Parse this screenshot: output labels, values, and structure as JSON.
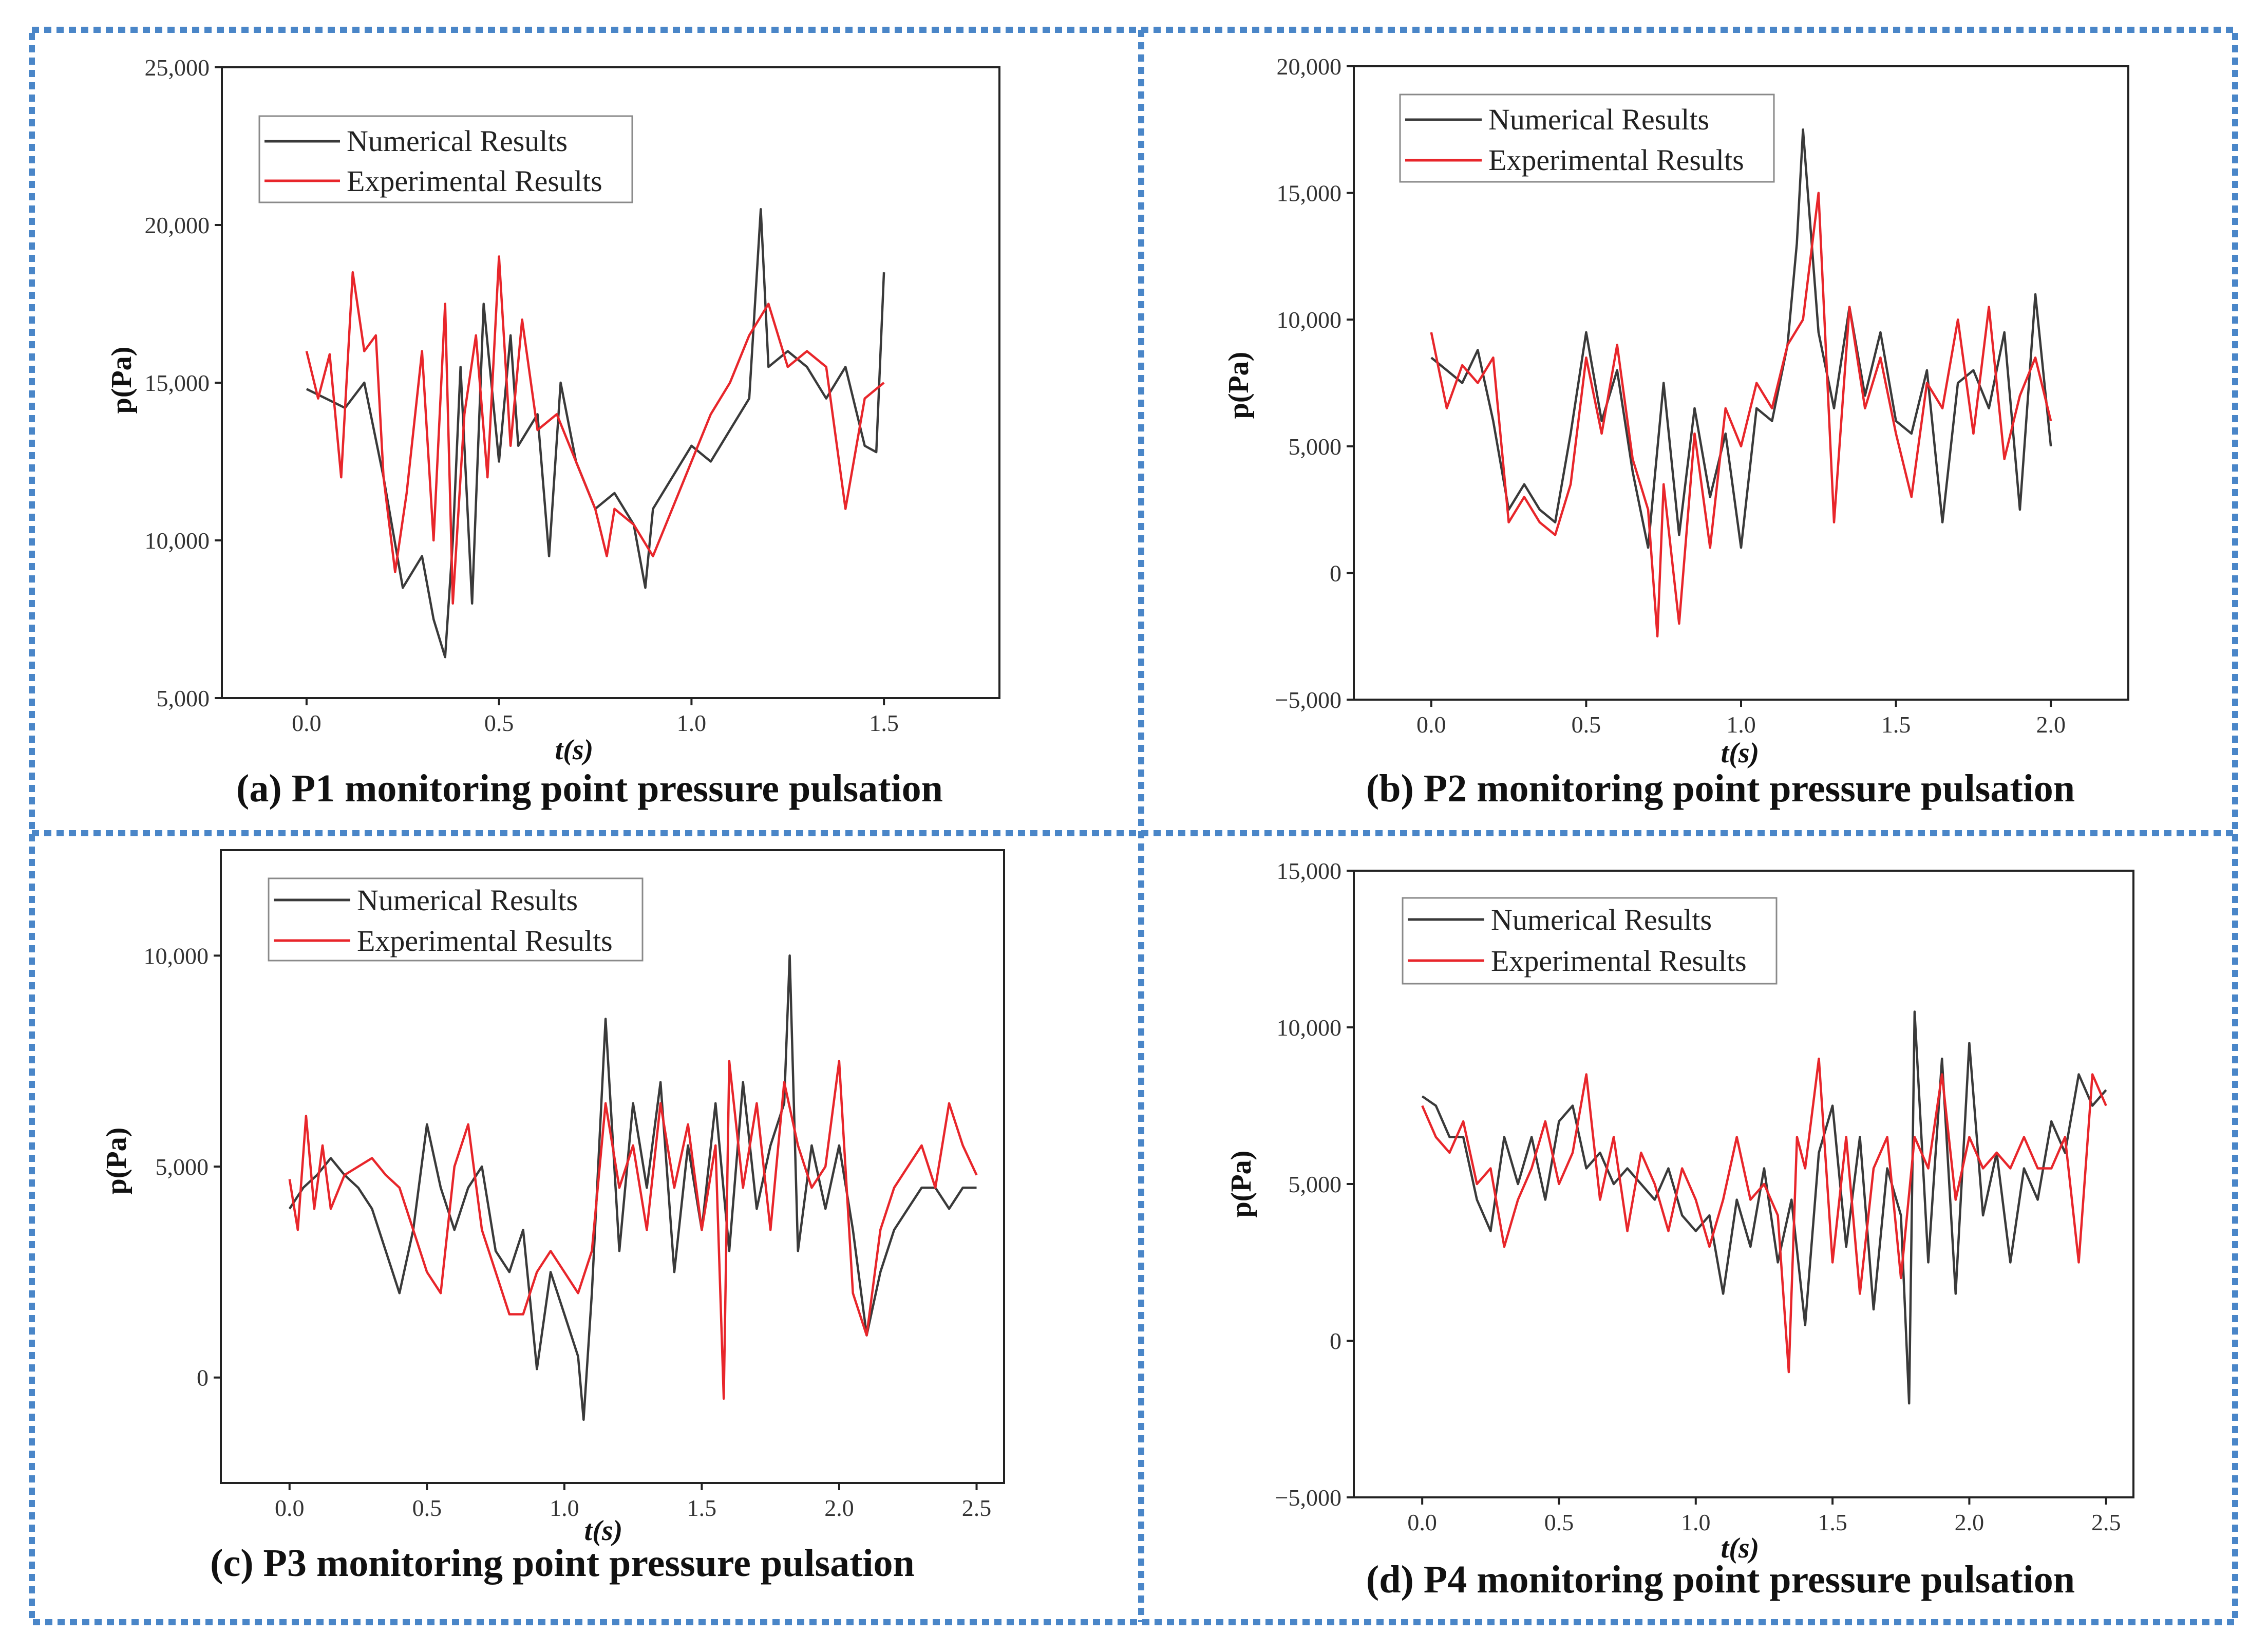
{
  "colors": {
    "numerical": "#3a3a3a",
    "experimental": "#e8262b",
    "frame": "#4a86c8"
  },
  "chart_data": [
    {
      "type": "line",
      "id": "a",
      "caption": "(a) P1 monitoring point pressure pulsation",
      "xlabel": "t(s)",
      "ylabel": "p(Pa)",
      "xlim": [
        -0.22,
        1.8
      ],
      "ylim": [
        5000,
        25000
      ],
      "xticks": [
        0.0,
        0.5,
        1.0,
        1.5
      ],
      "xtick_labels": [
        "0.0",
        "0.5",
        "1.0",
        "1.5"
      ],
      "yticks": [
        5000,
        10000,
        15000,
        20000,
        25000
      ],
      "ytick_labels": [
        "5,000",
        "10,000",
        "15,000",
        "20,000",
        "25,000"
      ],
      "legend": [
        "Numerical Results",
        "Experimental Results"
      ],
      "series": [
        {
          "name": "Numerical Results",
          "color": "#3a3a3a",
          "x": [
            0.0,
            0.05,
            0.1,
            0.15,
            0.2,
            0.25,
            0.3,
            0.33,
            0.36,
            0.38,
            0.4,
            0.43,
            0.46,
            0.5,
            0.53,
            0.55,
            0.6,
            0.63,
            0.66,
            0.7,
            0.75,
            0.8,
            0.85,
            0.88,
            0.9,
            0.95,
            1.0,
            1.05,
            1.1,
            1.15,
            1.18,
            1.2,
            1.25,
            1.3,
            1.35,
            1.4,
            1.45,
            1.48,
            1.5
          ],
          "y": [
            14800,
            14500,
            14200,
            15000,
            12000,
            8500,
            9500,
            7500,
            6300,
            10000,
            15500,
            8000,
            17500,
            12500,
            16500,
            13000,
            14000,
            9500,
            15000,
            12500,
            11000,
            11500,
            10500,
            8500,
            11000,
            12000,
            13000,
            12500,
            13500,
            14500,
            20500,
            15500,
            16000,
            15500,
            14500,
            15500,
            13000,
            12800,
            18500
          ]
        },
        {
          "name": "Experimental Results",
          "color": "#e8262b",
          "x": [
            0.0,
            0.03,
            0.06,
            0.09,
            0.12,
            0.15,
            0.18,
            0.2,
            0.23,
            0.26,
            0.3,
            0.33,
            0.36,
            0.38,
            0.41,
            0.44,
            0.47,
            0.5,
            0.53,
            0.56,
            0.6,
            0.65,
            0.7,
            0.75,
            0.78,
            0.8,
            0.85,
            0.9,
            0.95,
            1.0,
            1.05,
            1.1,
            1.15,
            1.2,
            1.25,
            1.3,
            1.35,
            1.4,
            1.45,
            1.5
          ],
          "y": [
            16000,
            14500,
            15900,
            12000,
            18500,
            16000,
            16500,
            12000,
            9000,
            11500,
            16000,
            10000,
            17500,
            8000,
            14000,
            16500,
            12000,
            19000,
            13000,
            17000,
            13500,
            14000,
            12500,
            11000,
            9500,
            11000,
            10500,
            9500,
            11000,
            12500,
            14000,
            15000,
            16500,
            17500,
            15500,
            16000,
            15500,
            11000,
            14500,
            15000
          ]
        }
      ]
    },
    {
      "type": "line",
      "id": "b",
      "caption": "(b) P2 monitoring point pressure pulsation",
      "xlabel": "t(s)",
      "ylabel": "p(Pa)",
      "xlim": [
        -0.25,
        2.25
      ],
      "ylim": [
        -5000,
        20000
      ],
      "xticks": [
        0.0,
        0.5,
        1.0,
        1.5,
        2.0
      ],
      "xtick_labels": [
        "0.0",
        "0.5",
        "1.0",
        "1.5",
        "2.0"
      ],
      "yticks": [
        -5000,
        0,
        5000,
        10000,
        15000,
        20000
      ],
      "ytick_labels": [
        "−5,000",
        "0",
        "5,000",
        "10,000",
        "15,000",
        "20,000"
      ],
      "legend": [
        "Numerical Results",
        "Experimental Results"
      ],
      "series": [
        {
          "name": "Numerical Results",
          "color": "#3a3a3a",
          "x": [
            0.0,
            0.05,
            0.1,
            0.15,
            0.2,
            0.25,
            0.3,
            0.35,
            0.4,
            0.45,
            0.5,
            0.55,
            0.6,
            0.65,
            0.7,
            0.75,
            0.8,
            0.85,
            0.9,
            0.95,
            1.0,
            1.05,
            1.1,
            1.15,
            1.18,
            1.2,
            1.25,
            1.3,
            1.35,
            1.4,
            1.45,
            1.5,
            1.55,
            1.6,
            1.65,
            1.7,
            1.75,
            1.8,
            1.85,
            1.9,
            1.95,
            2.0
          ],
          "y": [
            8500,
            8000,
            7500,
            8800,
            6000,
            2500,
            3500,
            2500,
            2000,
            5500,
            9500,
            6000,
            8000,
            4000,
            1000,
            7500,
            1500,
            6500,
            3000,
            5500,
            1000,
            6500,
            6000,
            9000,
            13000,
            17500,
            9500,
            6500,
            10500,
            7000,
            9500,
            6000,
            5500,
            8000,
            2000,
            7500,
            8000,
            6500,
            9500,
            2500,
            11000,
            5000
          ]
        },
        {
          "name": "Experimental Results",
          "color": "#e8262b",
          "x": [
            0.0,
            0.05,
            0.1,
            0.15,
            0.2,
            0.25,
            0.3,
            0.35,
            0.4,
            0.45,
            0.5,
            0.55,
            0.6,
            0.65,
            0.7,
            0.73,
            0.75,
            0.8,
            0.85,
            0.9,
            0.95,
            1.0,
            1.05,
            1.1,
            1.15,
            1.2,
            1.25,
            1.3,
            1.35,
            1.4,
            1.45,
            1.5,
            1.55,
            1.6,
            1.65,
            1.7,
            1.75,
            1.8,
            1.85,
            1.9,
            1.95,
            2.0
          ],
          "y": [
            9500,
            6500,
            8200,
            7500,
            8500,
            2000,
            3000,
            2000,
            1500,
            3500,
            8500,
            5500,
            9000,
            4500,
            2500,
            -2500,
            3500,
            -2000,
            5500,
            1000,
            6500,
            5000,
            7500,
            6500,
            9000,
            10000,
            15000,
            2000,
            10500,
            6500,
            8500,
            5500,
            3000,
            7500,
            6500,
            10000,
            5500,
            10500,
            4500,
            7000,
            8500,
            6000
          ]
        }
      ]
    },
    {
      "type": "line",
      "id": "c",
      "caption": "(c) P3 monitoring point pressure pulsation",
      "xlabel": "t(s)",
      "ylabel": "p(Pa)",
      "xlim": [
        -0.25,
        2.6
      ],
      "ylim": [
        -2500,
        12500
      ],
      "xticks": [
        0.0,
        0.5,
        1.0,
        1.5,
        2.0,
        2.5
      ],
      "xtick_labels": [
        "0.0",
        "0.5",
        "1.0",
        "1.5",
        "2.0",
        "2.5"
      ],
      "yticks": [
        0,
        5000,
        10000
      ],
      "ytick_labels": [
        "0",
        "5,000",
        "10,000"
      ],
      "legend": [
        "Numerical Results",
        "Experimental Results"
      ],
      "series": [
        {
          "name": "Numerical Results",
          "color": "#3a3a3a",
          "x": [
            0.0,
            0.05,
            0.1,
            0.15,
            0.2,
            0.25,
            0.3,
            0.35,
            0.4,
            0.45,
            0.5,
            0.55,
            0.6,
            0.65,
            0.7,
            0.75,
            0.8,
            0.85,
            0.9,
            0.95,
            1.0,
            1.05,
            1.07,
            1.1,
            1.15,
            1.2,
            1.25,
            1.3,
            1.35,
            1.4,
            1.45,
            1.5,
            1.55,
            1.6,
            1.65,
            1.7,
            1.75,
            1.8,
            1.82,
            1.85,
            1.9,
            1.95,
            2.0,
            2.05,
            2.1,
            2.15,
            2.2,
            2.25,
            2.3,
            2.35,
            2.4,
            2.45,
            2.5
          ],
          "y": [
            4000,
            4500,
            4800,
            5200,
            4800,
            4500,
            4000,
            3000,
            2000,
            3500,
            6000,
            4500,
            3500,
            4500,
            5000,
            3000,
            2500,
            3500,
            200,
            2500,
            1500,
            500,
            -1000,
            2000,
            8500,
            3000,
            6500,
            4500,
            7000,
            2500,
            5500,
            3500,
            6500,
            3000,
            7000,
            4000,
            5500,
            6500,
            10000,
            3000,
            5500,
            4000,
            5500,
            3500,
            1000,
            2500,
            3500,
            4000,
            4500,
            4500,
            4000,
            4500,
            4500
          ]
        },
        {
          "name": "Experimental Results",
          "color": "#e8262b",
          "x": [
            0.0,
            0.03,
            0.06,
            0.09,
            0.12,
            0.15,
            0.2,
            0.25,
            0.3,
            0.35,
            0.4,
            0.45,
            0.5,
            0.55,
            0.6,
            0.65,
            0.7,
            0.75,
            0.8,
            0.85,
            0.9,
            0.95,
            1.0,
            1.05,
            1.1,
            1.15,
            1.2,
            1.25,
            1.3,
            1.35,
            1.4,
            1.45,
            1.5,
            1.55,
            1.58,
            1.6,
            1.65,
            1.7,
            1.75,
            1.8,
            1.85,
            1.9,
            1.95,
            2.0,
            2.05,
            2.1,
            2.15,
            2.2,
            2.25,
            2.3,
            2.35,
            2.4,
            2.45,
            2.5
          ],
          "y": [
            4700,
            3500,
            6200,
            4000,
            5500,
            4000,
            4800,
            5000,
            5200,
            4800,
            4500,
            3500,
            2500,
            2000,
            5000,
            6000,
            3500,
            2500,
            1500,
            1500,
            2500,
            3000,
            2500,
            2000,
            3000,
            6500,
            4500,
            5500,
            3500,
            6500,
            4500,
            6000,
            3500,
            5500,
            -500,
            7500,
            4500,
            6500,
            3500,
            7000,
            5500,
            4500,
            5000,
            7500,
            2000,
            1000,
            3500,
            4500,
            5000,
            5500,
            4500,
            6500,
            5500,
            4800
          ]
        }
      ]
    },
    {
      "type": "line",
      "id": "d",
      "caption": "(d) P4 monitoring point pressure pulsation",
      "xlabel": "t(s)",
      "ylabel": "p(Pa)",
      "xlim": [
        -0.25,
        2.6
      ],
      "ylim": [
        -5000,
        15000
      ],
      "xticks": [
        0.0,
        0.5,
        1.0,
        1.5,
        2.0,
        2.5
      ],
      "xtick_labels": [
        "0.0",
        "0.5",
        "1.0",
        "1.5",
        "2.0",
        "2.5"
      ],
      "yticks": [
        -5000,
        0,
        5000,
        10000,
        15000
      ],
      "ytick_labels": [
        "−5,000",
        "0",
        "5,000",
        "10,000",
        "15,000"
      ],
      "legend": [
        "Numerical Results",
        "Experimental Results"
      ],
      "series": [
        {
          "name": "Numerical Results",
          "color": "#3a3a3a",
          "x": [
            0.0,
            0.05,
            0.1,
            0.15,
            0.2,
            0.25,
            0.3,
            0.35,
            0.4,
            0.45,
            0.5,
            0.55,
            0.6,
            0.65,
            0.7,
            0.75,
            0.8,
            0.85,
            0.9,
            0.95,
            1.0,
            1.05,
            1.1,
            1.15,
            1.2,
            1.25,
            1.3,
            1.35,
            1.4,
            1.45,
            1.5,
            1.55,
            1.6,
            1.65,
            1.7,
            1.75,
            1.78,
            1.8,
            1.85,
            1.9,
            1.95,
            2.0,
            2.05,
            2.1,
            2.15,
            2.2,
            2.25,
            2.3,
            2.35,
            2.4,
            2.45,
            2.5
          ],
          "y": [
            7800,
            7500,
            6500,
            6500,
            4500,
            3500,
            6500,
            5000,
            6500,
            4500,
            7000,
            7500,
            5500,
            6000,
            5000,
            5500,
            5000,
            4500,
            5500,
            4000,
            3500,
            4000,
            1500,
            4500,
            3000,
            5500,
            2500,
            4500,
            500,
            6000,
            7500,
            3000,
            6500,
            1000,
            5500,
            4000,
            -2000,
            10500,
            2500,
            9000,
            1500,
            9500,
            4000,
            6000,
            2500,
            5500,
            4500,
            7000,
            6000,
            8500,
            7500,
            8000
          ]
        },
        {
          "name": "Experimental Results",
          "color": "#e8262b",
          "x": [
            0.0,
            0.05,
            0.1,
            0.15,
            0.2,
            0.25,
            0.3,
            0.35,
            0.4,
            0.45,
            0.5,
            0.55,
            0.6,
            0.65,
            0.7,
            0.75,
            0.8,
            0.85,
            0.9,
            0.95,
            1.0,
            1.05,
            1.1,
            1.15,
            1.2,
            1.25,
            1.3,
            1.34,
            1.37,
            1.4,
            1.45,
            1.5,
            1.55,
            1.6,
            1.65,
            1.7,
            1.75,
            1.8,
            1.85,
            1.9,
            1.95,
            2.0,
            2.05,
            2.1,
            2.15,
            2.2,
            2.25,
            2.3,
            2.35,
            2.4,
            2.45,
            2.5
          ],
          "y": [
            7500,
            6500,
            6000,
            7000,
            5000,
            5500,
            3000,
            4500,
            5500,
            7000,
            5000,
            6000,
            8500,
            4500,
            6500,
            3500,
            6000,
            5000,
            3500,
            5500,
            4500,
            3000,
            4500,
            6500,
            4500,
            5000,
            4000,
            -1000,
            6500,
            5500,
            9000,
            2500,
            6500,
            1500,
            5500,
            6500,
            2000,
            6500,
            5500,
            8500,
            4500,
            6500,
            5500,
            6000,
            5500,
            6500,
            5500,
            5500,
            6500,
            2500,
            8500,
            7500
          ]
        }
      ]
    }
  ]
}
